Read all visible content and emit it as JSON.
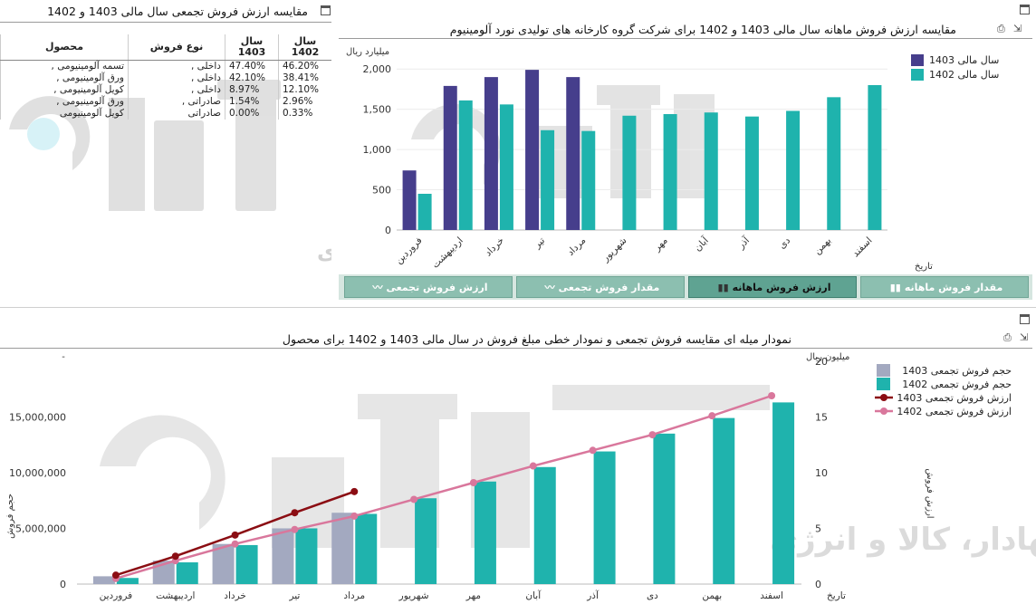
{
  "colors": {
    "s1403": "#463e8c",
    "s1402": "#1fb3ad",
    "cum1403": "#a3a9c0",
    "cum1402": "#1fb3ad",
    "line1403": "#8b0d13",
    "line1402": "#d9779c",
    "tab": "#8cbfb0",
    "tab_active": "#5fa392"
  },
  "watermark": {
    "brand": "آگاه",
    "tagline": "کارگزار بورس اوراق بهادار، کالا و انرژی"
  },
  "left_panel": {
    "title": "مقایسه ارزش فروش تجمعی سال مالی 1403 و 1402",
    "headers": {
      "product": "محصول",
      "sale_type": "نوع فروش",
      "y1403": "سال 1403",
      "y1402": "سال 1402"
    },
    "rows": [
      {
        "product": "تسمه آلومینیومی ,",
        "sale_type": "داخلی ,",
        "y1403": "47.40%",
        "y1402": "46.20%"
      },
      {
        "product": "ورق آلومینیومی ,",
        "sale_type": "داخلی ,",
        "y1403": "42.10%",
        "y1402": "38.41%"
      },
      {
        "product": "کویل آلومینیومی ,",
        "sale_type": "داخلی ,",
        "y1403": "8.97%",
        "y1402": "12.10%"
      },
      {
        "product": "ورق آلومینیومی ,",
        "sale_type": "صادراتی ,",
        "y1403": "1.54%",
        "y1402": "2.96%"
      },
      {
        "product": "کویل آلومینیومی",
        "sale_type": "صادراتی",
        "y1403": "0.00%",
        "y1402": "0.33%"
      }
    ]
  },
  "right_panel": {
    "title": "مقایسه ارزش فروش ماهانه سال مالی 1403 و 1402 برای شرکت گروه کارخانه های تولیدی نورد آلومینیوم",
    "tabs": [
      {
        "label": "مقدار فروش ماهانه",
        "icon": "bar-chart-icon"
      },
      {
        "label": "ارزش فروش ماهانه",
        "icon": "bar-chart-icon",
        "active": true
      },
      {
        "label": "مقدار فروش تجمعی",
        "icon": "line-chart-icon"
      },
      {
        "label": "ارزش فروش تجمعی",
        "icon": "line-chart-icon"
      }
    ]
  },
  "bottom_panel": {
    "title": "نمودار میله ای مقایسه فروش تجمعی و نمودار خطی مبلغ فروش در سال مالی 1403 و 1402 برای محصول"
  },
  "chart_data": [
    {
      "type": "bar",
      "ylabel": "میلیارد ریال",
      "xlabel": "تاریخ",
      "ylim": [
        0,
        2250
      ],
      "yticks": [
        0,
        500,
        1000,
        1500,
        2000
      ],
      "ytick_labels": [
        "0",
        "500",
        "1,000",
        "1,500",
        "2,000"
      ],
      "categories": [
        "فروردین",
        "اردیبهشت",
        "خرداد",
        "تیر",
        "مرداد",
        "شهریور",
        "مهر",
        "آبان",
        "آذر",
        "دی",
        "بهمن",
        "اسفند"
      ],
      "series": [
        {
          "name": "سال مالی 1403",
          "values": [
            740,
            1790,
            1900,
            1990,
            1900,
            null,
            null,
            null,
            null,
            null,
            null,
            null
          ]
        },
        {
          "name": "سال مالی 1402",
          "values": [
            450,
            1610,
            1560,
            1240,
            1230,
            1420,
            1440,
            1460,
            1410,
            1480,
            1650,
            1800
          ]
        }
      ],
      "legend": "top-right"
    },
    {
      "type": "bar",
      "ylabel": "حجم فروش",
      "y2label": "ارزش فروش",
      "y2unit": "میلیون ریال",
      "xlabel": "تاریخ",
      "ylim": [
        0,
        19500000
      ],
      "yticks": [
        0,
        5000000,
        10000000,
        15000000
      ],
      "ytick_labels": [
        "0",
        "5,000,000",
        "10,000,000",
        "15,000,000"
      ],
      "y2lim": [
        0,
        19.5
      ],
      "y2ticks": [
        0,
        5,
        10,
        15,
        20
      ],
      "y2tick_labels": [
        "0",
        "5",
        "10",
        "15",
        "20"
      ],
      "categories": [
        "فروردین",
        "اردیبهشت",
        "خرداد",
        "تیر",
        "مرداد",
        "شهریور",
        "مهر",
        "آبان",
        "آذر",
        "دی",
        "بهمن",
        "اسفند"
      ],
      "series": [
        {
          "name": "حجم فروش تجمعی 1403",
          "kind": "bar",
          "values": [
            700000,
            2100000,
            3600000,
            5000000,
            6400000,
            null,
            null,
            null,
            null,
            null,
            null,
            null
          ]
        },
        {
          "name": "حجم فروش تجمعی 1402",
          "kind": "bar",
          "values": [
            550000,
            1950000,
            3500000,
            5000000,
            6300000,
            7700000,
            9200000,
            10500000,
            11900000,
            13500000,
            14900000,
            16300000
          ]
        },
        {
          "name": "ارزش فروش تجمعی 1403",
          "kind": "line",
          "values": [
            0.8,
            2.5,
            4.4,
            6.4,
            8.3,
            null,
            null,
            null,
            null,
            null,
            null,
            null
          ]
        },
        {
          "name": "ارزش فروش تجمعی 1402",
          "kind": "line",
          "values": [
            0.5,
            2.1,
            3.6,
            4.9,
            6.1,
            7.6,
            9.1,
            10.6,
            12.0,
            13.4,
            15.1,
            16.9
          ]
        }
      ],
      "legend": "top-right"
    }
  ]
}
